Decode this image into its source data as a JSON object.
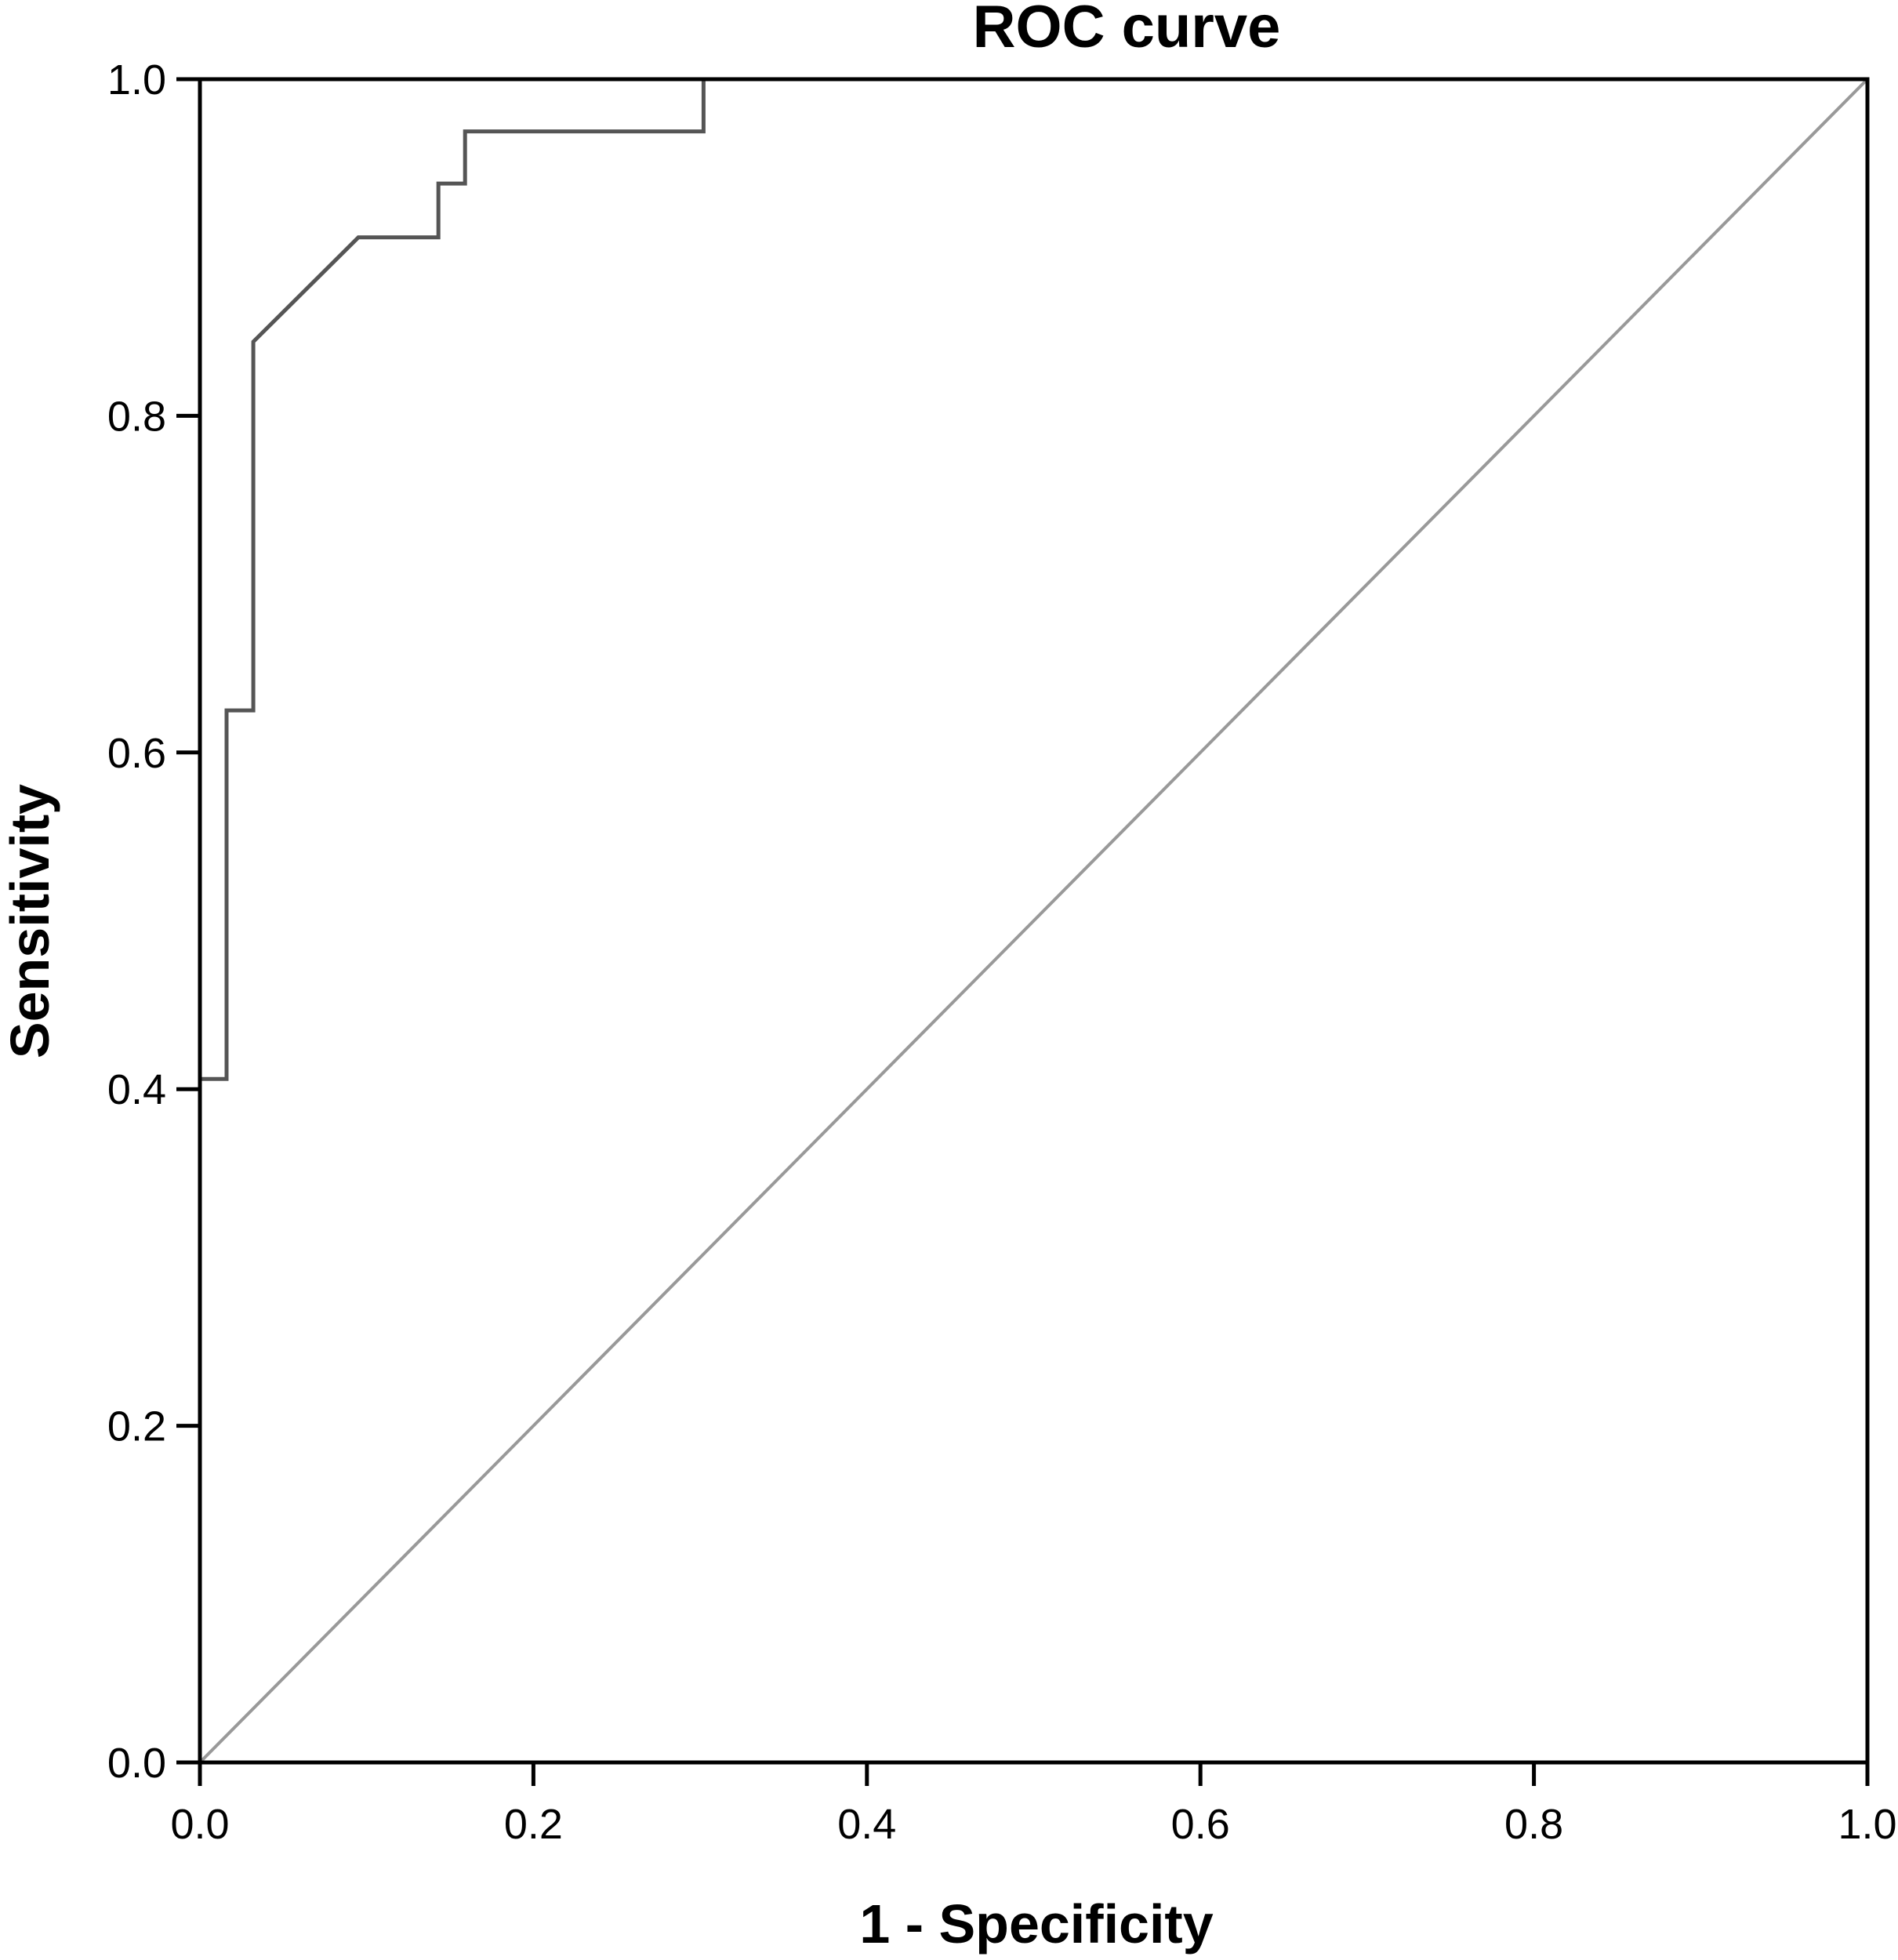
{
  "chart_data": {
    "type": "line",
    "title": "ROC curve",
    "xlabel": "1 - Specificity",
    "ylabel": "Sensitivity",
    "xlim": [
      0,
      1
    ],
    "ylim": [
      0,
      1
    ],
    "x_ticks": [
      "0.0",
      "0.2",
      "0.4",
      "0.6",
      "0.8",
      "1.0"
    ],
    "y_ticks": [
      "0.0",
      "0.2",
      "0.4",
      "0.6",
      "0.8",
      "1.0"
    ],
    "grid": false,
    "legend": "none",
    "series": [
      {
        "color": "#555555",
        "step": true,
        "points": [
          [
            0.0,
            0.0
          ],
          [
            0.0,
            0.406
          ],
          [
            0.016,
            0.406
          ],
          [
            0.016,
            0.625
          ],
          [
            0.032,
            0.625
          ],
          [
            0.032,
            0.844
          ],
          [
            0.095,
            0.906
          ],
          [
            0.143,
            0.906
          ],
          [
            0.143,
            0.938
          ],
          [
            0.159,
            0.938
          ],
          [
            0.159,
            0.969
          ],
          [
            0.302,
            0.969
          ],
          [
            0.302,
            1.0
          ],
          [
            1.0,
            1.0
          ]
        ]
      },
      {
        "color": "#999999",
        "step": false,
        "points": [
          [
            0.0,
            0.0
          ],
          [
            1.0,
            1.0
          ]
        ]
      }
    ]
  }
}
